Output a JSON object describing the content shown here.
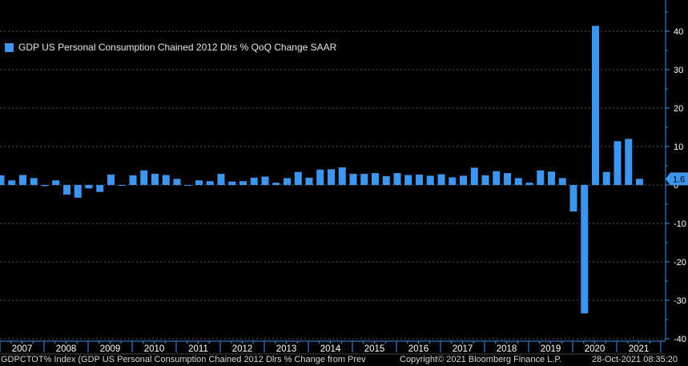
{
  "legend": {
    "label": "GDP US Personal Consumption Chained 2012 Dlrs % QoQ Change SAAR",
    "color": "#3d95ee"
  },
  "footer": {
    "left": "GDPCTOT% Index (GDP US Personal Consumption Chained 2012 Dlrs % Change from Prev",
    "middle": "Copyright© 2021 Bloomberg Finance L.P.",
    "right": "28-Oct-2021 08:35:20"
  },
  "chart_data": {
    "type": "bar",
    "series": [
      {
        "name": "GDP US Personal Consumption Chained 2012 Dlrs % QoQ Change SAAR",
        "color": "#3d95ee",
        "values": [
          2.5,
          1.2,
          2.6,
          1.8,
          -0.3,
          1.2,
          -2.5,
          -3.3,
          -0.9,
          -1.8,
          2.7,
          -0.2,
          2.5,
          3.8,
          2.9,
          2.6,
          1.6,
          0.0,
          1.2,
          1.0,
          2.9,
          0.9,
          1.0,
          1.9,
          2.2,
          0.6,
          1.8,
          3.4,
          1.9,
          4.0,
          4.1,
          4.6,
          2.9,
          2.9,
          3.1,
          2.3,
          3.1,
          2.6,
          2.7,
          2.4,
          2.8,
          2.0,
          2.4,
          4.5,
          2.5,
          3.6,
          3.1,
          1.8,
          0.6,
          3.8,
          3.5,
          1.8,
          -6.9,
          -33.4,
          41.4,
          3.4,
          11.4,
          12.0,
          1.6
        ]
      }
    ],
    "year_labels": [
      "2007",
      "2008",
      "2009",
      "2010",
      "2011",
      "2012",
      "2013",
      "2014",
      "2015",
      "2016",
      "2017",
      "2018",
      "2019",
      "2020",
      "2021"
    ],
    "y_ticks": [
      40,
      30,
      20,
      10,
      0,
      -10,
      -20,
      -30,
      -40
    ],
    "ylim": [
      -42,
      47
    ],
    "last_value_label": "1.6",
    "background": "#000000",
    "grid_color": "#5a5a5a",
    "axis_color": "#3d95ee",
    "text_color": "#ffffff"
  }
}
